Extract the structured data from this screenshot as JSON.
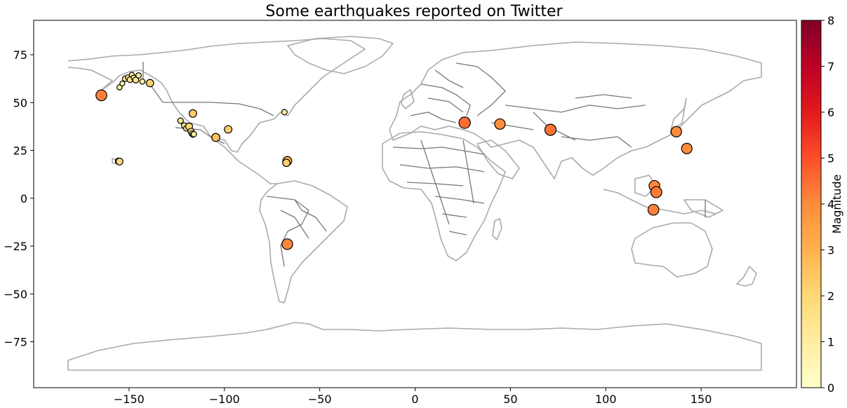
{
  "chart_data": {
    "type": "scatter",
    "title": "Some earthquakes reported on Twitter",
    "x_range": [
      -200,
      200
    ],
    "y_range": [
      -99,
      93
    ],
    "x_ticks": [
      -150,
      -100,
      -50,
      0,
      50,
      100,
      150
    ],
    "y_ticks": [
      -75,
      -50,
      -25,
      0,
      25,
      50,
      75
    ],
    "colorbar": {
      "label": "Magnitude",
      "range": [
        0,
        8
      ],
      "ticks": [
        0,
        1,
        2,
        3,
        4,
        5,
        6,
        7,
        8
      ],
      "colormap": "YlOrRd",
      "stops": [
        "#ffffcc",
        "#ffeda0",
        "#fed976",
        "#feb24c",
        "#fd8d3c",
        "#fc4e2a",
        "#e31a1c",
        "#bd0026",
        "#800026"
      ]
    },
    "points": [
      {
        "lon": -164.5,
        "lat": 53.8,
        "mag": 4.2
      },
      {
        "lon": -155.0,
        "lat": 58.0,
        "mag": 1.0
      },
      {
        "lon": -153.5,
        "lat": 60.0,
        "mag": 0.8
      },
      {
        "lon": -152.0,
        "lat": 62.5,
        "mag": 1.2
      },
      {
        "lon": -150.5,
        "lat": 63.2,
        "mag": 1.0
      },
      {
        "lon": -149.5,
        "lat": 62.0,
        "mag": 1.3
      },
      {
        "lon": -148.5,
        "lat": 64.5,
        "mag": 0.9
      },
      {
        "lon": -147.5,
        "lat": 63.0,
        "mag": 1.0
      },
      {
        "lon": -146.5,
        "lat": 61.8,
        "mag": 1.4
      },
      {
        "lon": -145.0,
        "lat": 64.2,
        "mag": 1.1
      },
      {
        "lon": -143.0,
        "lat": 61.0,
        "mag": 1.0
      },
      {
        "lon": -139.0,
        "lat": 60.2,
        "mag": 2.2
      },
      {
        "lon": -155.5,
        "lat": 19.4,
        "mag": 1.6
      },
      {
        "lon": -155.0,
        "lat": 19.2,
        "mag": 1.9
      },
      {
        "lon": -116.5,
        "lat": 44.3,
        "mag": 2.3
      },
      {
        "lon": -123.0,
        "lat": 40.5,
        "mag": 1.2
      },
      {
        "lon": -121.0,
        "lat": 38.0,
        "mag": 1.3
      },
      {
        "lon": -120.0,
        "lat": 36.5,
        "mag": 1.1
      },
      {
        "lon": -118.5,
        "lat": 37.5,
        "mag": 2.0
      },
      {
        "lon": -117.5,
        "lat": 35.0,
        "mag": 1.5
      },
      {
        "lon": -117.0,
        "lat": 33.8,
        "mag": 1.2
      },
      {
        "lon": -116.5,
        "lat": 33.2,
        "mag": 1.0
      },
      {
        "lon": -116.0,
        "lat": 33.5,
        "mag": 1.1
      },
      {
        "lon": -104.5,
        "lat": 31.8,
        "mag": 2.6
      },
      {
        "lon": -98.0,
        "lat": 36.0,
        "mag": 2.3
      },
      {
        "lon": -68.5,
        "lat": 45.0,
        "mag": 1.1
      },
      {
        "lon": -67.0,
        "lat": 19.5,
        "mag": 3.1
      },
      {
        "lon": -67.5,
        "lat": 18.5,
        "mag": 2.2
      },
      {
        "lon": -67.0,
        "lat": -24.0,
        "mag": 4.1
      },
      {
        "lon": 26.0,
        "lat": 39.5,
        "mag": 4.5
      },
      {
        "lon": 44.5,
        "lat": 38.8,
        "mag": 4.0
      },
      {
        "lon": 71.0,
        "lat": 35.8,
        "mag": 4.4
      },
      {
        "lon": 137.0,
        "lat": 34.8,
        "mag": 4.0
      },
      {
        "lon": 142.5,
        "lat": 26.0,
        "mag": 4.0
      },
      {
        "lon": 125.5,
        "lat": 6.5,
        "mag": 4.1
      },
      {
        "lon": 126.5,
        "lat": 3.2,
        "mag": 4.3
      },
      {
        "lon": 125.0,
        "lat": -6.0,
        "mag": 4.2
      }
    ]
  }
}
